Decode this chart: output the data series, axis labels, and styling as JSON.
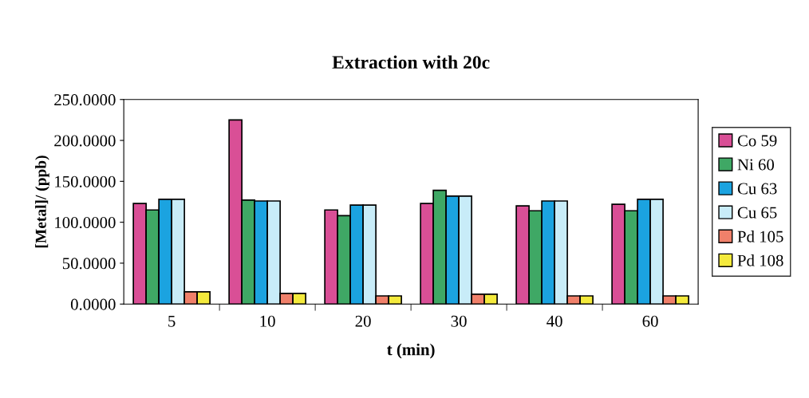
{
  "chart_data": {
    "type": "bar",
    "title": "Extraction with 20c",
    "xlabel": "t (min)",
    "ylabel": "[Metal]/ (ppb)",
    "categories": [
      "5",
      "10",
      "20",
      "30",
      "40",
      "60"
    ],
    "series": [
      {
        "name": "Co 59",
        "color": "#d94f96",
        "values": [
          123,
          225,
          115,
          123,
          120,
          122
        ]
      },
      {
        "name": "Ni 60",
        "color": "#3fa865",
        "values": [
          115,
          127,
          108,
          139,
          114,
          114
        ]
      },
      {
        "name": "Cu 63",
        "color": "#1ba3e0",
        "values": [
          128,
          126,
          121,
          132,
          126,
          128
        ]
      },
      {
        "name": "Cu 65",
        "color": "#c8ecf8",
        "values": [
          128,
          126,
          121,
          132,
          126,
          128
        ]
      },
      {
        "name": "Pd 105",
        "color": "#f0806a",
        "values": [
          15,
          13,
          10,
          12,
          10,
          10
        ]
      },
      {
        "name": "Pd 108",
        "color": "#f4ea3c",
        "values": [
          15,
          13,
          10,
          12,
          10,
          10
        ]
      }
    ],
    "ylim": [
      0,
      250
    ],
    "yticks": [
      {
        "value": 0,
        "label": "0.0000"
      },
      {
        "value": 50,
        "label": "50.0000"
      },
      {
        "value": 100,
        "label": "100.0000"
      },
      {
        "value": 150,
        "label": "150.0000"
      },
      {
        "value": 200,
        "label": "200.0000"
      },
      {
        "value": 250,
        "label": "250.0000"
      }
    ],
    "legend": "right",
    "grid": false
  }
}
